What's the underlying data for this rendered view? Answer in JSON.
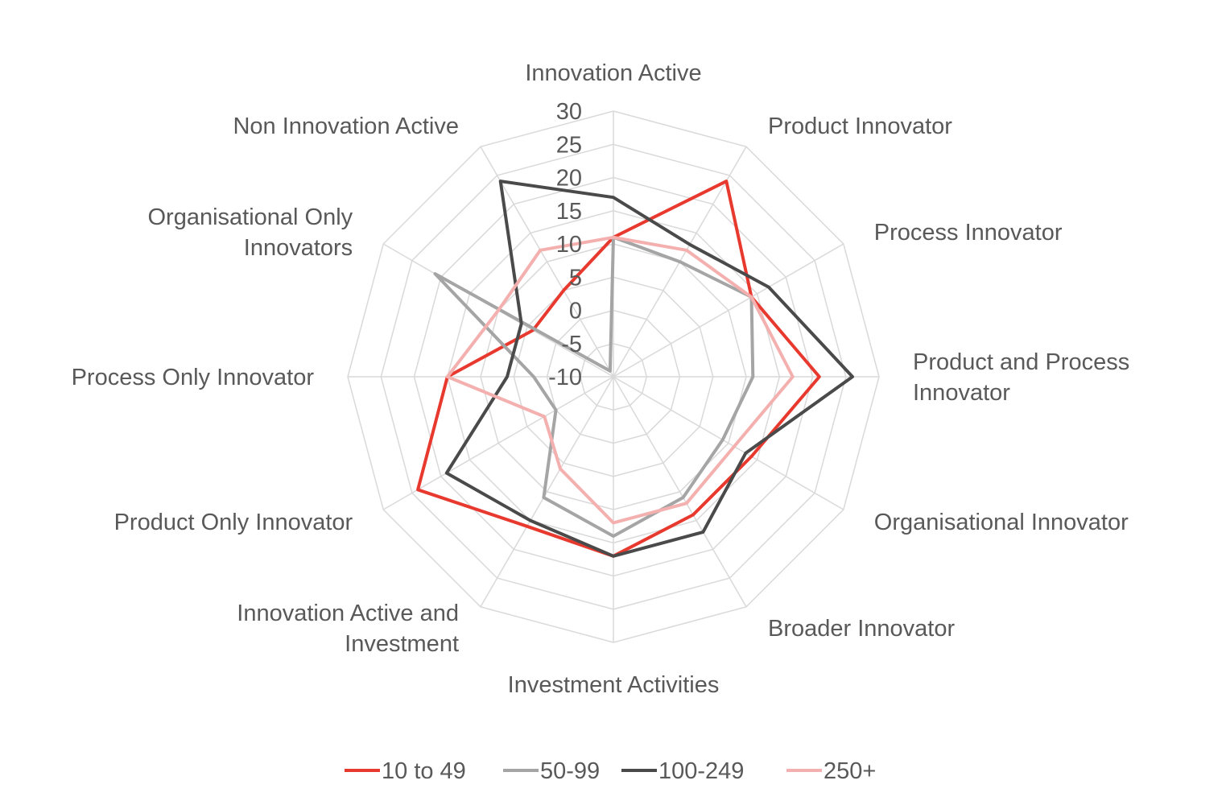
{
  "chart_data": {
    "type": "radar",
    "categories": [
      [
        "Innovation Active"
      ],
      [
        "Product Innovator"
      ],
      [
        "Process Innovator"
      ],
      [
        "Product and Process",
        "Innovator"
      ],
      [
        "Organisational Innovator"
      ],
      [
        "Broader Innovator"
      ],
      [
        "Investment Activities"
      ],
      [
        "Innovation Active and",
        "Investment"
      ],
      [
        "Product Only Innovator"
      ],
      [
        "Process Only Innovator"
      ],
      [
        "Organisational Only",
        "Innovators"
      ],
      [
        "Non Innovation Active"
      ]
    ],
    "rlim": [
      -10,
      30
    ],
    "rticks": [
      "-10",
      "-5",
      "0",
      "5",
      "10",
      "15",
      "20",
      "25",
      "30"
    ],
    "grid": true,
    "legend_position": "bottom",
    "series": [
      {
        "name": "10 to 49",
        "color": "#e8392f",
        "values": [
          11,
          24,
          14,
          21,
          14,
          14,
          17,
          16,
          24,
          15,
          4,
          5
        ]
      },
      {
        "name": "50-99",
        "color": "#a5a5a5",
        "values": [
          11,
          10,
          14,
          11,
          9,
          11,
          14,
          11,
          0,
          2,
          21,
          -9
        ]
      },
      {
        "name": "100-249",
        "color": "#4a4a4a",
        "values": [
          17,
          13,
          17,
          26,
          13,
          17,
          17,
          15,
          19,
          6,
          6,
          24
        ]
      },
      {
        "name": "250+",
        "color": "#f4b0ae",
        "values": [
          11,
          12,
          14,
          17,
          11,
          12,
          12,
          6,
          2,
          15,
          10,
          12
        ]
      }
    ]
  }
}
